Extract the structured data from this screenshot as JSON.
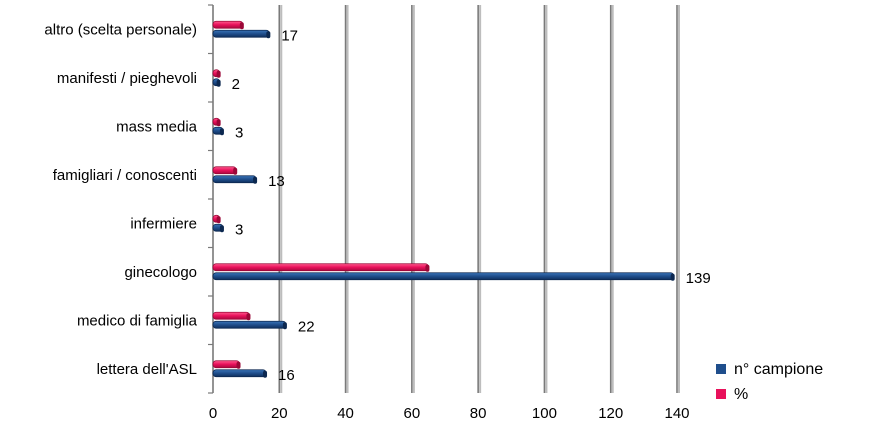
{
  "chart_data": {
    "type": "bar",
    "orientation": "horizontal",
    "categories": [
      "altro (scelta personale)",
      "manifesti / pieghevoli",
      "mass media",
      "famigliari / conoscenti",
      "infermiere",
      "ginecologo",
      "medico di famiglia",
      "lettera dell'ASL"
    ],
    "series": [
      {
        "name": "n° campione",
        "values": [
          17,
          2,
          3,
          13,
          3,
          139,
          22,
          16
        ],
        "color": "#1f4e8c"
      },
      {
        "name": "%",
        "values": [
          9,
          2,
          2,
          7,
          2,
          65,
          11,
          8
        ],
        "color": "#e8115b"
      }
    ],
    "data_labels": [
      "17",
      "2",
      "3",
      "13",
      "3",
      "139",
      "22",
      "16"
    ],
    "xlim": [
      0,
      140
    ],
    "x_ticks": [
      "0",
      "20",
      "40",
      "60",
      "80",
      "100",
      "120",
      "140"
    ],
    "grid": "vertical",
    "legend_position": "bottom-right",
    "title": "",
    "xlabel": "",
    "ylabel": ""
  }
}
